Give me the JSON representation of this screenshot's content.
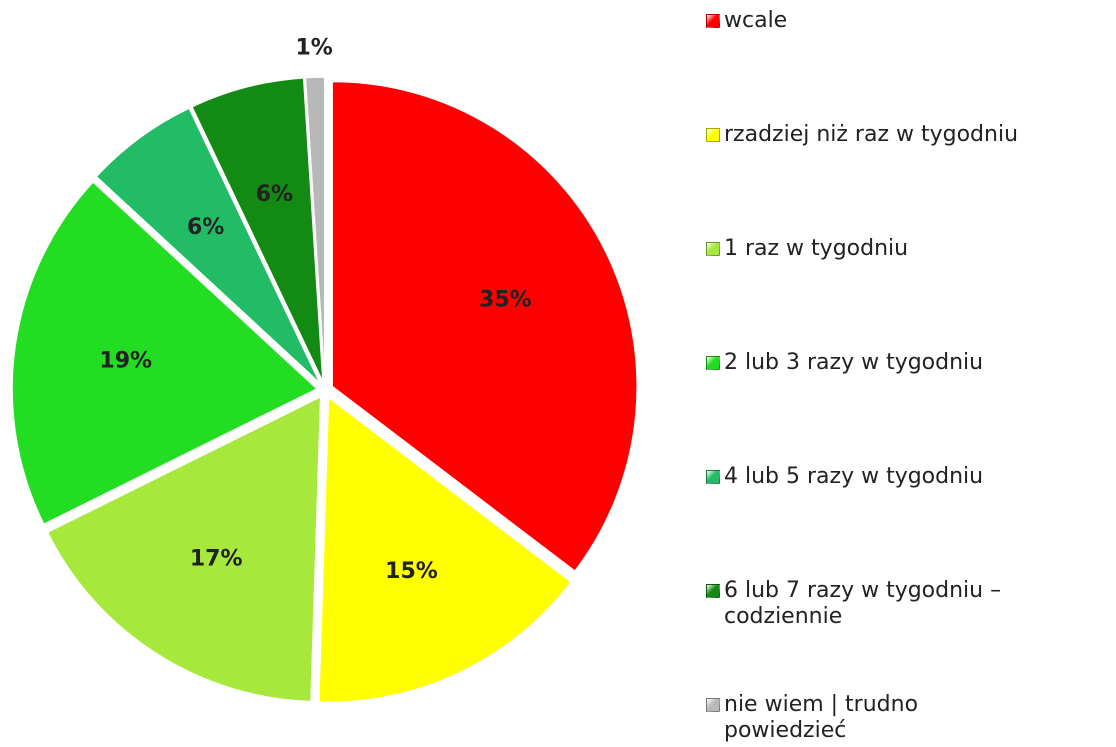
{
  "chart_data": {
    "type": "pie",
    "categories": [
      "wcale",
      "rzadziej niż raz w tygodniu",
      "1 raz w tygodniu",
      "2 lub 3 razy w tygodniu",
      "4 lub 5 razy w tygodniu",
      "6 lub 7 razy w tygodniu – codziennie",
      "nie wiem | trudno powiedzieć"
    ],
    "values": [
      35,
      15,
      17,
      19,
      6,
      6,
      1
    ],
    "value_labels": [
      "35%",
      "15%",
      "17%",
      "19%",
      "6%",
      "6%",
      "1%"
    ],
    "colors": [
      "#ff0000",
      "#ffff00",
      "#a6e83c",
      "#22dd22",
      "#22bb66",
      "#138a13",
      "#b8b8b8"
    ],
    "legend": "right"
  }
}
